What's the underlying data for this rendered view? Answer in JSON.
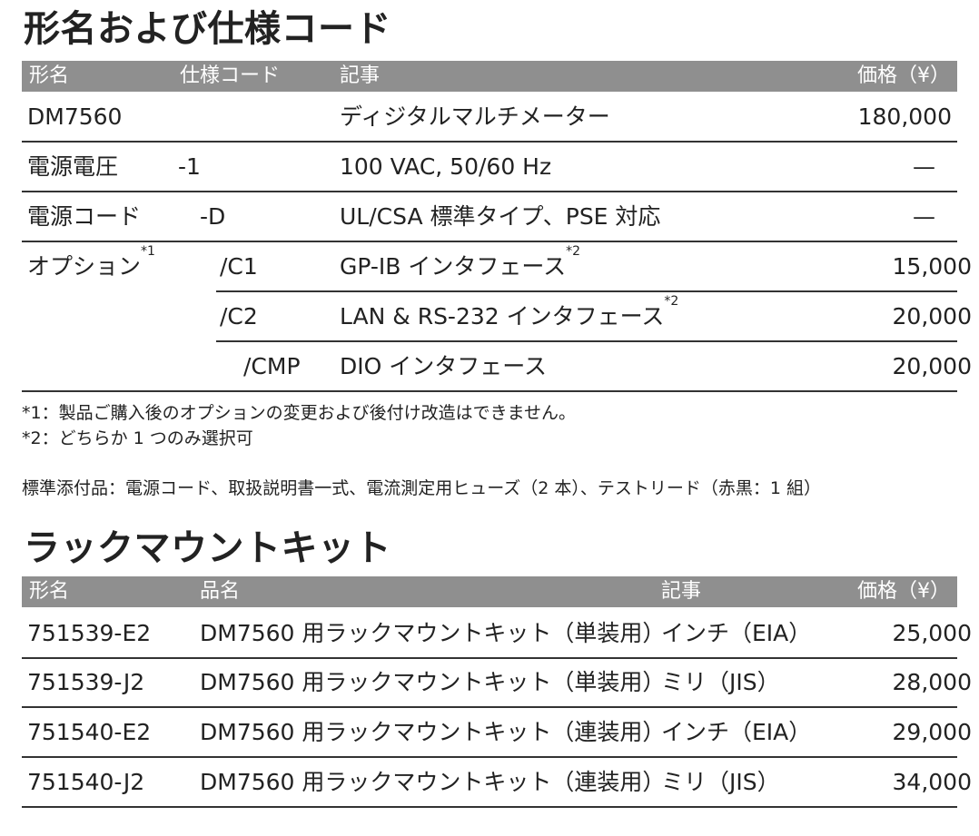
{
  "spec": {
    "title": "形名および仕様コード",
    "headers": {
      "model": "形名",
      "code": "仕様コード",
      "desc": "記事",
      "price": "価格（¥）"
    },
    "rows": [
      {
        "model": "DM7560",
        "code": "",
        "desc": "ディジタルマルチメーター",
        "desc_sup": "",
        "price": "180,000"
      },
      {
        "model": "電源電圧",
        "code": "-1",
        "desc": "100 VAC, 50/60 Hz",
        "desc_sup": "",
        "price": "—"
      },
      {
        "model": "電源コード",
        "code": "-D",
        "desc": "UL/CSA 標準タイプ、PSE 対応",
        "desc_sup": "",
        "price": "—"
      },
      {
        "model": "オプション",
        "model_sup": "*1",
        "code": "/C1",
        "desc": "GP-IB インタフェース",
        "desc_sup": "*2",
        "price": "15,000"
      },
      {
        "model": "",
        "code": "/C2",
        "desc": "LAN & RS-232 インタフェース",
        "desc_sup": "*2",
        "price": "20,000"
      },
      {
        "model": "",
        "code": "/CMP",
        "desc": "DIO インタフェース",
        "desc_sup": "",
        "price": "20,000"
      }
    ],
    "notes": [
      "*1：製品ご購入後のオプションの変更および後付け改造はできません。",
      "*2：どちらか 1 つのみ選択可"
    ],
    "accessories": "標準添付品：電源コード、取扱説明書一式、電流測定用ヒューズ（2 本）、テストリード（赤黒：1 組）"
  },
  "rack": {
    "title": "ラックマウントキット",
    "headers": {
      "model": "形名",
      "name": "品名",
      "desc": "記事",
      "price": "価格（¥）"
    },
    "rows": [
      {
        "model": "751539-E2",
        "name": "DM7560 用ラックマウントキット（単装用）",
        "desc": "インチ（EIA）",
        "price": "25,000"
      },
      {
        "model": "751539-J2",
        "name": "DM7560 用ラックマウントキット（単装用）",
        "desc": "ミリ（JIS）",
        "price": "28,000"
      },
      {
        "model": "751540-E2",
        "name": "DM7560 用ラックマウントキット（連装用）",
        "desc": "インチ（EIA）",
        "price": "29,000"
      },
      {
        "model": "751540-J2",
        "name": "DM7560 用ラックマウントキット（連装用）",
        "desc": "ミリ（JIS）",
        "price": "34,000"
      }
    ]
  }
}
